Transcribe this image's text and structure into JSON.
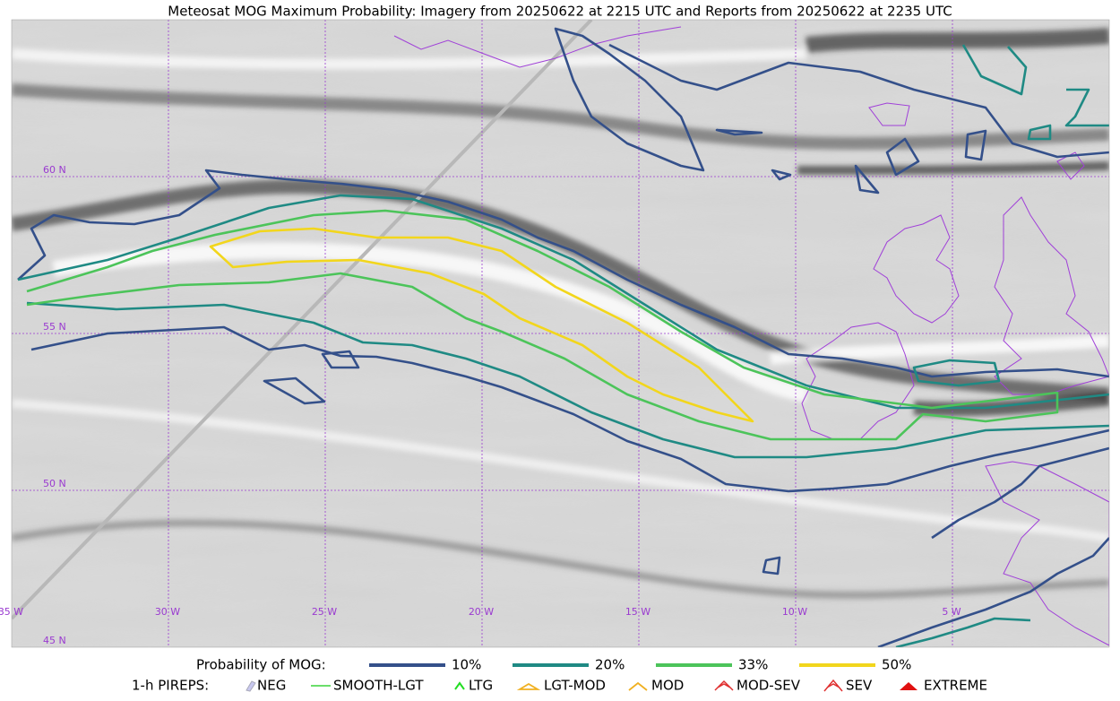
{
  "header": {
    "title": "Meteosat MOG Maximum Probability: Imagery from 20250622 at 2215 UTC and Reports from 20250622 at 2235 UTC"
  },
  "grid": {
    "lat_labels": [
      "60 N",
      "55 N",
      "50 N",
      "45 N"
    ],
    "lon_labels": [
      "35 W",
      "30 W",
      "25 W",
      "20 W",
      "15 W",
      "10 W",
      "5 W"
    ]
  },
  "legend": {
    "probability": {
      "label": "Probability of MOG:",
      "levels": [
        {
          "label": "10%",
          "color": "#34508a"
        },
        {
          "label": "20%",
          "color": "#1f8a84"
        },
        {
          "label": "33%",
          "color": "#4cc45a"
        },
        {
          "label": "50%",
          "color": "#f2d61c"
        }
      ]
    },
    "pireps": {
      "label": "1-h PIREPS:",
      "items": [
        "NEG",
        "SMOOTH-LGT",
        "LTG",
        "LGT-MOD",
        "MOD",
        "MOD-SEV",
        "SEV",
        "EXTREME"
      ]
    }
  }
}
